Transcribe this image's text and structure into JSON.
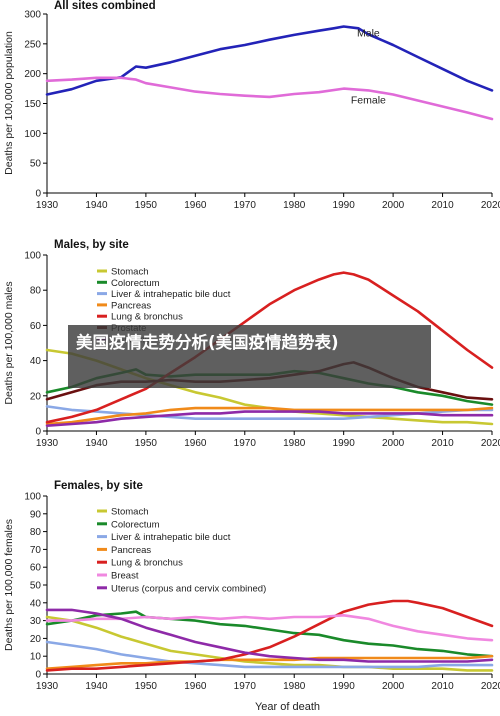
{
  "overlay": {
    "text": "美国疫情走势分析(美国疫情趋势表)"
  },
  "chart_data": [
    {
      "type": "line",
      "title": "All sites combined",
      "xlabel": "",
      "ylabel": "Deaths per 100,000 population",
      "xlim": [
        1930,
        2020
      ],
      "ylim": [
        0,
        300
      ],
      "xticks": [
        1930,
        1940,
        1950,
        1960,
        1970,
        1980,
        1990,
        2000,
        2010,
        2020
      ],
      "yticks": [
        0,
        50,
        100,
        150,
        200,
        250,
        300
      ],
      "grid": false,
      "legend": "inline labels",
      "series": [
        {
          "name": "Male",
          "color": "#2323b8",
          "label_at": [
            1995,
            262
          ],
          "x": [
            1930,
            1935,
            1940,
            1945,
            1948,
            1950,
            1955,
            1960,
            1965,
            1970,
            1975,
            1980,
            1985,
            1988,
            1990,
            1993,
            1995,
            2000,
            2005,
            2010,
            2015,
            2020
          ],
          "y": [
            165,
            174,
            188,
            194,
            212,
            210,
            219,
            230,
            241,
            248,
            257,
            265,
            272,
            276,
            279,
            276,
            266,
            248,
            228,
            208,
            188,
            172
          ]
        },
        {
          "name": "Female",
          "color": "#e06bd8",
          "label_at": [
            1995,
            150
          ],
          "x": [
            1930,
            1935,
            1940,
            1945,
            1948,
            1950,
            1955,
            1960,
            1965,
            1970,
            1975,
            1980,
            1985,
            1990,
            1995,
            2000,
            2005,
            2010,
            2015,
            2020
          ],
          "y": [
            188,
            190,
            193,
            193,
            190,
            184,
            177,
            170,
            166,
            163,
            161,
            166,
            169,
            175,
            172,
            165,
            155,
            145,
            135,
            124
          ]
        }
      ]
    },
    {
      "type": "line",
      "title": "Males, by site",
      "xlabel": "",
      "ylabel": "Deaths per 100,000 males",
      "xlim": [
        1930,
        2020
      ],
      "ylim": [
        0,
        100
      ],
      "xticks": [
        1930,
        1940,
        1950,
        1960,
        1970,
        1980,
        1990,
        2000,
        2010,
        2020
      ],
      "yticks": [
        0,
        20,
        40,
        60,
        80,
        100
      ],
      "grid": false,
      "legend": "top-left",
      "series": [
        {
          "name": "Stomach",
          "color": "#c8c832",
          "x": [
            1930,
            1935,
            1940,
            1945,
            1950,
            1955,
            1960,
            1965,
            1970,
            1975,
            1980,
            1985,
            1990,
            1995,
            2000,
            2005,
            2010,
            2015,
            2020
          ],
          "y": [
            46,
            44,
            40,
            35,
            30,
            26,
            22,
            19,
            15,
            13,
            11,
            10,
            9,
            8,
            7,
            6,
            5,
            5,
            4
          ]
        },
        {
          "name": "Colorectum",
          "color": "#1a8a2a",
          "x": [
            1930,
            1935,
            1940,
            1945,
            1948,
            1950,
            1955,
            1960,
            1965,
            1970,
            1975,
            1980,
            1985,
            1990,
            1995,
            2000,
            2005,
            2010,
            2015,
            2020
          ],
          "y": [
            22,
            25,
            30,
            33,
            35,
            32,
            31,
            32,
            32,
            32,
            32,
            34,
            33,
            30,
            27,
            25,
            22,
            20,
            17,
            15
          ]
        },
        {
          "name": "Liver & intrahepatic bile duct",
          "color": "#8aa8e6",
          "x": [
            1930,
            1935,
            1940,
            1945,
            1950,
            1955,
            1960,
            1965,
            1970,
            1975,
            1980,
            1985,
            1990,
            1995,
            2000,
            2005,
            2010,
            2015,
            2020
          ],
          "y": [
            14,
            12,
            11,
            10,
            9,
            8,
            7,
            7,
            7,
            7,
            7,
            7,
            7,
            8,
            9,
            10,
            11,
            12,
            12
          ]
        },
        {
          "name": "Pancreas",
          "color": "#f08a1a",
          "x": [
            1930,
            1935,
            1940,
            1945,
            1950,
            1955,
            1960,
            1965,
            1970,
            1975,
            1980,
            1985,
            1990,
            1995,
            2000,
            2005,
            2010,
            2015,
            2020
          ],
          "y": [
            4,
            5,
            7,
            9,
            10,
            12,
            13,
            13,
            13,
            13,
            12,
            12,
            12,
            12,
            12,
            12,
            12,
            12,
            13
          ]
        },
        {
          "name": "Lung & bronchus",
          "color": "#d82020",
          "x": [
            1930,
            1935,
            1940,
            1945,
            1950,
            1955,
            1960,
            1965,
            1970,
            1975,
            1980,
            1985,
            1988,
            1990,
            1992,
            1995,
            2000,
            2005,
            2010,
            2015,
            2020
          ],
          "y": [
            5,
            8,
            12,
            18,
            24,
            33,
            42,
            52,
            62,
            72,
            80,
            86,
            89,
            90,
            89,
            86,
            77,
            68,
            57,
            46,
            36
          ]
        },
        {
          "name": "Prostate",
          "color": "#6a1010",
          "x": [
            1930,
            1935,
            1940,
            1945,
            1950,
            1955,
            1960,
            1965,
            1970,
            1975,
            1980,
            1985,
            1990,
            1992,
            1995,
            2000,
            2005,
            2010,
            2015,
            2020
          ],
          "y": [
            18,
            22,
            26,
            28,
            28,
            29,
            28,
            28,
            29,
            30,
            32,
            34,
            38,
            39,
            36,
            30,
            25,
            22,
            19,
            18
          ]
        },
        {
          "name": "Leukemia",
          "color": "#8e2aa8",
          "x": [
            1930,
            1935,
            1940,
            1945,
            1950,
            1955,
            1960,
            1965,
            1970,
            1975,
            1980,
            1985,
            1990,
            1995,
            2000,
            2005,
            2010,
            2015,
            2020
          ],
          "y": [
            3,
            4,
            5,
            7,
            8,
            9,
            10,
            10,
            11,
            11,
            11,
            11,
            10,
            10,
            10,
            10,
            9,
            9,
            9
          ]
        }
      ]
    },
    {
      "type": "line",
      "title": "Females, by site",
      "xlabel": "Year of death",
      "ylabel": "Deaths per 100,000 females",
      "xlim": [
        1930,
        2020
      ],
      "ylim": [
        0,
        100
      ],
      "xticks": [
        1930,
        1940,
        1950,
        1960,
        1970,
        1980,
        1990,
        2000,
        2010,
        2020
      ],
      "yticks": [
        0,
        10,
        20,
        30,
        40,
        50,
        60,
        70,
        80,
        90,
        100
      ],
      "grid": false,
      "legend": "top-left",
      "series": [
        {
          "name": "Stomach",
          "color": "#c8c832",
          "x": [
            1930,
            1935,
            1940,
            1945,
            1950,
            1955,
            1960,
            1965,
            1970,
            1975,
            1980,
            1985,
            1990,
            1995,
            2000,
            2005,
            2010,
            2015,
            2020
          ],
          "y": [
            32,
            30,
            26,
            21,
            17,
            13,
            11,
            9,
            7,
            6,
            5,
            5,
            4,
            4,
            3,
            3,
            3,
            2,
            2
          ]
        },
        {
          "name": "Colorectum",
          "color": "#1a8a2a",
          "x": [
            1930,
            1935,
            1940,
            1945,
            1948,
            1950,
            1955,
            1960,
            1965,
            1970,
            1975,
            1980,
            1985,
            1990,
            1995,
            2000,
            2005,
            2010,
            2015,
            2020
          ],
          "y": [
            28,
            30,
            33,
            34,
            35,
            32,
            31,
            30,
            28,
            27,
            25,
            23,
            22,
            19,
            17,
            16,
            14,
            13,
            11,
            10
          ]
        },
        {
          "name": "Liver & intrahepatic bile duct",
          "color": "#8aa8e6",
          "x": [
            1930,
            1935,
            1940,
            1945,
            1950,
            1955,
            1960,
            1965,
            1970,
            1975,
            1980,
            1985,
            1990,
            1995,
            2000,
            2005,
            2010,
            2015,
            2020
          ],
          "y": [
            18,
            16,
            14,
            11,
            9,
            7,
            6,
            5,
            4,
            4,
            4,
            4,
            4,
            4,
            4,
            4,
            5,
            5,
            5
          ]
        },
        {
          "name": "Pancreas",
          "color": "#f08a1a",
          "x": [
            1930,
            1935,
            1940,
            1945,
            1950,
            1955,
            1960,
            1965,
            1970,
            1975,
            1980,
            1985,
            1990,
            1995,
            2000,
            2005,
            2010,
            2015,
            2020
          ],
          "y": [
            3,
            4,
            5,
            6,
            6,
            7,
            7,
            8,
            8,
            8,
            8,
            9,
            9,
            9,
            9,
            9,
            9,
            9,
            10
          ]
        },
        {
          "name": "Lung & bronchus",
          "color": "#d82020",
          "x": [
            1930,
            1935,
            1940,
            1945,
            1950,
            1955,
            1960,
            1965,
            1970,
            1975,
            1980,
            1985,
            1990,
            1995,
            2000,
            2003,
            2005,
            2010,
            2015,
            2020
          ],
          "y": [
            2,
            3,
            3,
            4,
            5,
            6,
            7,
            8,
            11,
            15,
            21,
            28,
            35,
            39,
            41,
            41,
            40,
            37,
            32,
            27
          ]
        },
        {
          "name": "Breast",
          "color": "#f088e0",
          "x": [
            1930,
            1935,
            1940,
            1945,
            1950,
            1955,
            1960,
            1965,
            1970,
            1975,
            1980,
            1985,
            1990,
            1995,
            2000,
            2005,
            2010,
            2015,
            2020
          ],
          "y": [
            30,
            30,
            31,
            31,
            32,
            31,
            32,
            31,
            32,
            31,
            32,
            32,
            33,
            31,
            27,
            24,
            22,
            20,
            19
          ]
        },
        {
          "name": "Uterus (corpus and cervix combined)",
          "color": "#8e2aa8",
          "x": [
            1930,
            1935,
            1940,
            1945,
            1950,
            1955,
            1960,
            1965,
            1970,
            1975,
            1980,
            1985,
            1990,
            1995,
            2000,
            2005,
            2010,
            2015,
            2020
          ],
          "y": [
            36,
            36,
            34,
            31,
            26,
            22,
            18,
            15,
            12,
            10,
            9,
            8,
            8,
            7,
            7,
            7,
            7,
            7,
            8
          ]
        }
      ]
    }
  ]
}
